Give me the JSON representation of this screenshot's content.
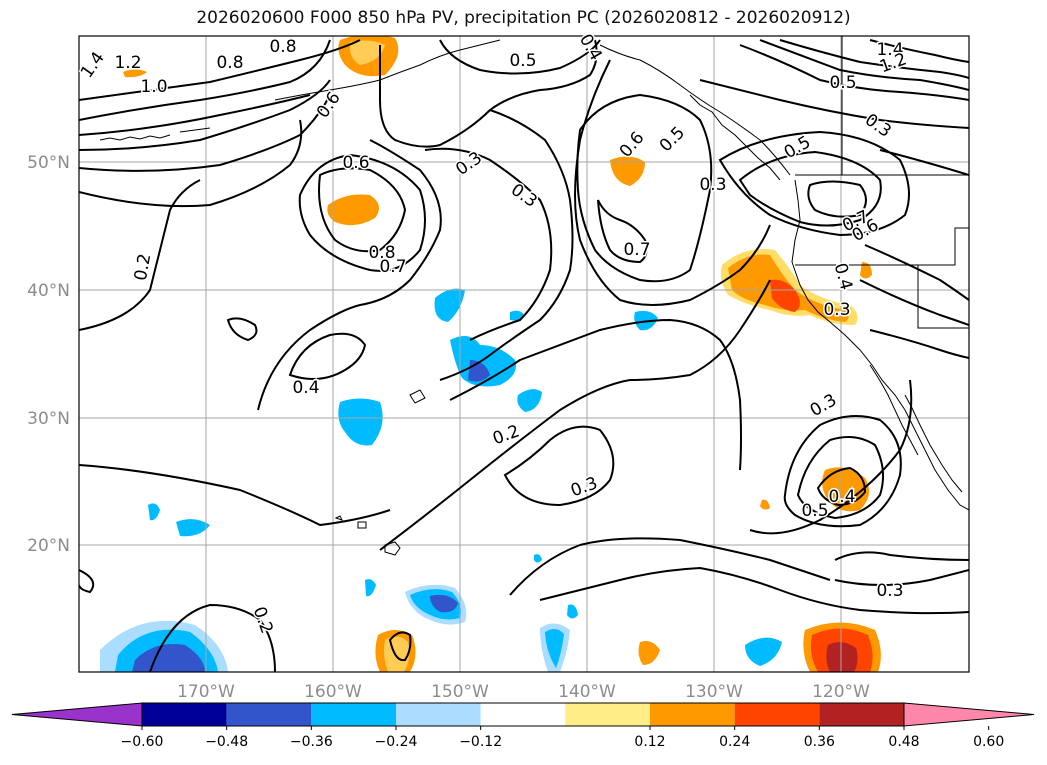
{
  "title": "2026020600 F000 850 hPa PV, precipitation PC (2026020812 - 2026020912)",
  "map": {
    "lat_labels": [
      "50°N",
      "40°N",
      "30°N",
      "20°N"
    ],
    "lon_labels": [
      "170°W",
      "160°W",
      "150°W",
      "140°W",
      "130°W",
      "120°W"
    ],
    "contour_labels": [
      "1.4",
      "1.2",
      "1.0",
      "0.8",
      "0.8",
      "0.6",
      "0.6",
      "0.5",
      "0.4",
      "0.3",
      "0.3",
      "0.6",
      "0.5",
      "0.3",
      "0.5",
      "1.4",
      "1.2",
      "0.5",
      "0.3",
      "0.7",
      "0.6",
      "0.4",
      "0.8",
      "0.7",
      "0.2",
      "0.7",
      "0.3",
      "0.4",
      "0.2",
      "0.3",
      "0.3",
      "0.5",
      "0.4",
      "0.3",
      "0.2"
    ],
    "colors": {
      "coast": "#000000",
      "contour": "#000000",
      "grid": "#a6a6a6",
      "axis_label": "#8c8c8c"
    }
  },
  "colorbar": {
    "ticks": [
      "−0.60",
      "−0.48",
      "−0.36",
      "−0.24",
      "−0.12",
      "0.12",
      "0.24",
      "0.36",
      "0.48",
      "0.60"
    ],
    "colors": [
      "#9933cc",
      "#000099",
      "#3355cc",
      "#00bbff",
      "#aaddff",
      "#ffffff",
      "#ffee88",
      "#ff9900",
      "#ff4400",
      "#b22222",
      "#ff88aa"
    ]
  }
}
